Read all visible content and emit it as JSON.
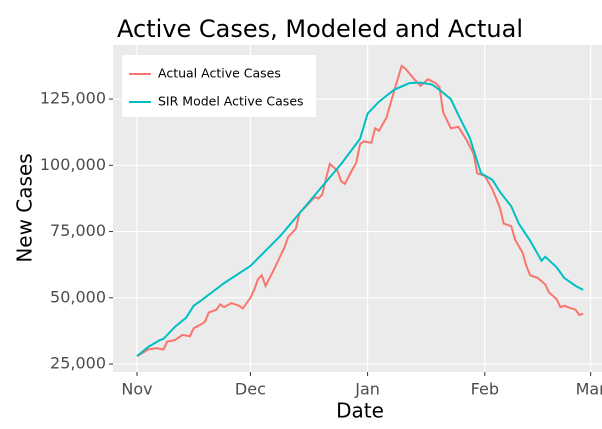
{
  "chart_data": {
    "type": "line",
    "title": "Active Cases, Modeled and Actual",
    "x_label": "Date",
    "y_label": "New Cases",
    "xlim": [
      -6.35,
      123.0
    ],
    "xticks": [
      {
        "value": 0,
        "label": "Nov"
      },
      {
        "value": 30,
        "label": "Dec"
      },
      {
        "value": 61,
        "label": "Jan"
      },
      {
        "value": 92,
        "label": "Feb"
      },
      {
        "value": 120,
        "label": "Mar"
      }
    ],
    "ylim": [
      22000,
      145400
    ],
    "yticks": [
      {
        "value": 25000,
        "label": "25,000"
      },
      {
        "value": 50000,
        "label": "50,000"
      },
      {
        "value": 75000,
        "label": "75,000"
      },
      {
        "value": 100000,
        "label": "100,000"
      },
      {
        "value": 125000,
        "label": "125,000"
      }
    ],
    "grid": true,
    "legend": "top-left",
    "series": [
      {
        "name": "Actual Active Cases",
        "color": "#F8766D",
        "x": [
          0,
          3,
          5,
          7,
          8,
          10,
          12,
          14,
          15,
          17,
          18,
          19,
          21,
          22,
          23,
          25,
          27,
          28,
          30,
          31,
          32,
          33,
          34,
          36,
          37,
          39,
          40,
          42,
          43,
          45,
          47,
          48,
          49,
          50,
          51,
          53,
          54,
          55,
          57,
          58,
          59,
          60,
          62,
          63,
          64,
          66,
          68,
          70,
          71,
          73,
          75,
          77,
          79,
          80,
          81,
          83,
          85,
          87,
          89,
          90,
          92,
          94,
          96,
          97,
          99,
          100,
          102,
          103,
          104,
          106,
          108,
          109,
          111,
          112,
          113,
          115,
          116,
          117,
          118
        ],
        "values": [
          28000,
          30500,
          31000,
          30500,
          33500,
          34000,
          36000,
          35500,
          38500,
          40000,
          41000,
          44500,
          45500,
          47500,
          46500,
          48000,
          47000,
          46000,
          50000,
          53000,
          57000,
          58500,
          54500,
          60000,
          63000,
          69000,
          73000,
          76000,
          82000,
          85000,
          88000,
          87500,
          89000,
          95000,
          100500,
          98000,
          94000,
          93000,
          98500,
          101000,
          108000,
          109000,
          108500,
          114000,
          113000,
          118000,
          128000,
          137500,
          136500,
          133000,
          130000,
          132500,
          131000,
          129500,
          120000,
          114000,
          114500,
          110000,
          104500,
          97000,
          96000,
          91000,
          84000,
          78000,
          77000,
          72000,
          67000,
          62000,
          58500,
          57500,
          55000,
          52000,
          49500,
          46500,
          47000,
          46000,
          45500,
          43500,
          44000
        ]
      },
      {
        "name": "SIR Model Active Cases",
        "color": "#00BFC4",
        "x": [
          0,
          3,
          6,
          7,
          10,
          13,
          15,
          17,
          23,
          30,
          38,
          46,
          54,
          59,
          61,
          64,
          68,
          72,
          75,
          78,
          80,
          83,
          85,
          88,
          91,
          94,
          96,
          99,
          101,
          104,
          107,
          108,
          111,
          113,
          116,
          118
        ],
        "values": [
          28000,
          31500,
          34000,
          34500,
          39000,
          42500,
          47000,
          49000,
          55500,
          62000,
          73500,
          87000,
          100500,
          110000,
          119500,
          124000,
          128500,
          131000,
          131200,
          130500,
          128500,
          125000,
          119000,
          110500,
          97000,
          94500,
          90000,
          84500,
          78000,
          71500,
          64000,
          65500,
          61500,
          57500,
          54500,
          53000
        ]
      }
    ]
  }
}
